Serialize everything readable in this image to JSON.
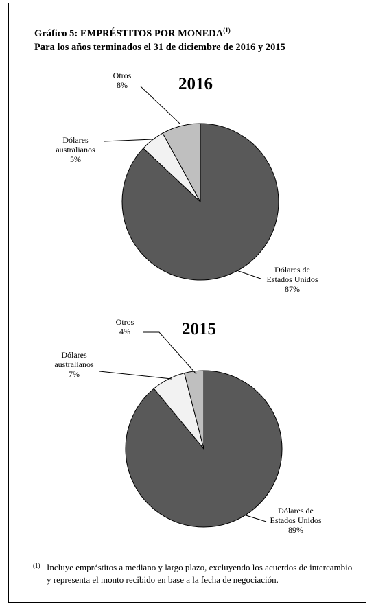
{
  "title": {
    "line1": "Gráfico 5: EMPRÉSTITOS POR MONEDA",
    "sup": "(1)",
    "line2": "Para los años terminados el 31 de diciembre de 2016 y 2015"
  },
  "chart_data": [
    {
      "type": "pie",
      "title": "2016",
      "slices": [
        {
          "name": "Dólares de Estados Unidos",
          "label_lines": [
            "Dólares de",
            "Estados Unidos",
            "87%"
          ],
          "value": 87,
          "color": "#595959"
        },
        {
          "name": "Dólares australianos",
          "label_lines": [
            "Dólares",
            "australianos",
            "5%"
          ],
          "value": 5,
          "color": "#f2f2f2"
        },
        {
          "name": "Otros",
          "label_lines": [
            "Otros",
            "8%"
          ],
          "value": 8,
          "color": "#bfbfbf"
        }
      ]
    },
    {
      "type": "pie",
      "title": "2015",
      "slices": [
        {
          "name": "Dólares de Estados Unidos",
          "label_lines": [
            "Dólares de",
            "Estados Unidos",
            "89%"
          ],
          "value": 89,
          "color": "#595959"
        },
        {
          "name": "Dólares australianos",
          "label_lines": [
            "Dólares",
            "australianos",
            "7%"
          ],
          "value": 7,
          "color": "#f2f2f2"
        },
        {
          "name": "Otros",
          "label_lines": [
            "Otros",
            "4%"
          ],
          "value": 4,
          "color": "#bfbfbf"
        }
      ]
    }
  ],
  "footnote": {
    "sup": "(1)",
    "text": "Incluye empréstitos a mediano y largo plazo, excluyendo los acuerdos de intercambio y representa el monto recibido en base a la fecha de negociación."
  }
}
